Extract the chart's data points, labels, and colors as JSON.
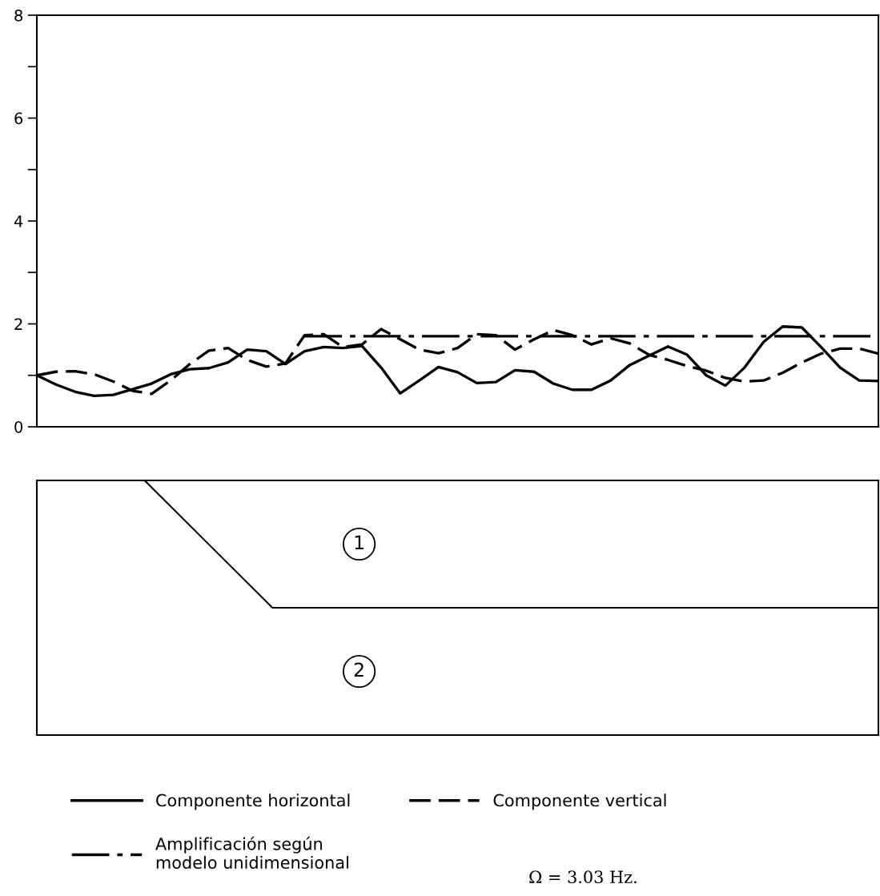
{
  "chart_data": [
    {
      "type": "line",
      "categories": [
        null,
        null,
        null,
        null,
        null,
        null,
        null,
        null,
        null,
        null,
        null,
        null,
        null,
        null,
        null,
        null,
        null,
        null,
        null,
        null,
        null,
        null,
        null,
        null,
        null,
        null,
        null,
        null,
        null,
        null,
        null,
        null,
        null,
        null,
        null,
        null,
        null,
        null,
        null,
        null,
        null,
        null,
        null,
        null,
        null
      ],
      "ylim": [
        0,
        8
      ],
      "yticks": [
        0,
        {
          "value": 1,
          "label": null
        },
        2,
        {
          "value": 3,
          "label": null
        },
        4,
        {
          "value": 5,
          "label": null
        },
        6,
        {
          "value": 7,
          "label": null
        },
        8
      ],
      "grid": false,
      "legend": "bottom",
      "marker": "none",
      "series": [
        {
          "name": "Componente horizontal",
          "color": "#000000",
          "line_style": "solid",
          "values": [
            1.0,
            0.82,
            0.68,
            0.6,
            0.62,
            0.73,
            0.84,
            1.02,
            1.12,
            1.14,
            1.25,
            1.5,
            1.47,
            1.22,
            1.47,
            1.55,
            1.53,
            1.57,
            1.15,
            0.65,
            0.9,
            1.16,
            1.06,
            0.85,
            0.87,
            1.1,
            1.07,
            0.84,
            0.72,
            0.72,
            0.9,
            1.2,
            1.38,
            1.56,
            1.4,
            1.0,
            0.8,
            1.15,
            1.65,
            1.95,
            1.93,
            1.55,
            1.15,
            0.9,
            0.89
          ]
        },
        {
          "name": "Componente vertical",
          "color": "#000000",
          "line_style": "dashed",
          "values": [
            1.0,
            1.07,
            1.08,
            1.02,
            0.88,
            0.7,
            0.64,
            0.9,
            1.22,
            1.48,
            1.53,
            1.3,
            1.17,
            1.23,
            1.78,
            1.8,
            1.55,
            1.6,
            1.9,
            1.7,
            1.5,
            1.43,
            1.53,
            1.8,
            1.78,
            1.5,
            1.7,
            1.88,
            1.78,
            1.6,
            1.72,
            1.62,
            1.4,
            1.3,
            1.18,
            1.09,
            0.95,
            0.88,
            0.9,
            1.05,
            1.25,
            1.42,
            1.52,
            1.52,
            1.42
          ]
        },
        {
          "name": "Amplificación según\nmodelo unidimensional",
          "color": "#000000",
          "line_style": "dashdot",
          "values": [
            null,
            null,
            null,
            null,
            null,
            null,
            null,
            null,
            null,
            null,
            null,
            null,
            null,
            null,
            1.76,
            1.76,
            1.76,
            1.76,
            1.76,
            1.76,
            1.76,
            1.76,
            1.76,
            1.76,
            1.76,
            1.76,
            1.76,
            1.76,
            1.76,
            1.76,
            1.76,
            1.76,
            1.76,
            1.76,
            1.76,
            1.76,
            1.76,
            1.76,
            1.76,
            1.76,
            1.76,
            1.76,
            1.76,
            1.76,
            1.76
          ]
        }
      ],
      "annotations": [
        "Ω = 3.03 Hz."
      ]
    },
    {
      "type": "other",
      "annotations": [
        "1",
        "2"
      ]
    }
  ]
}
